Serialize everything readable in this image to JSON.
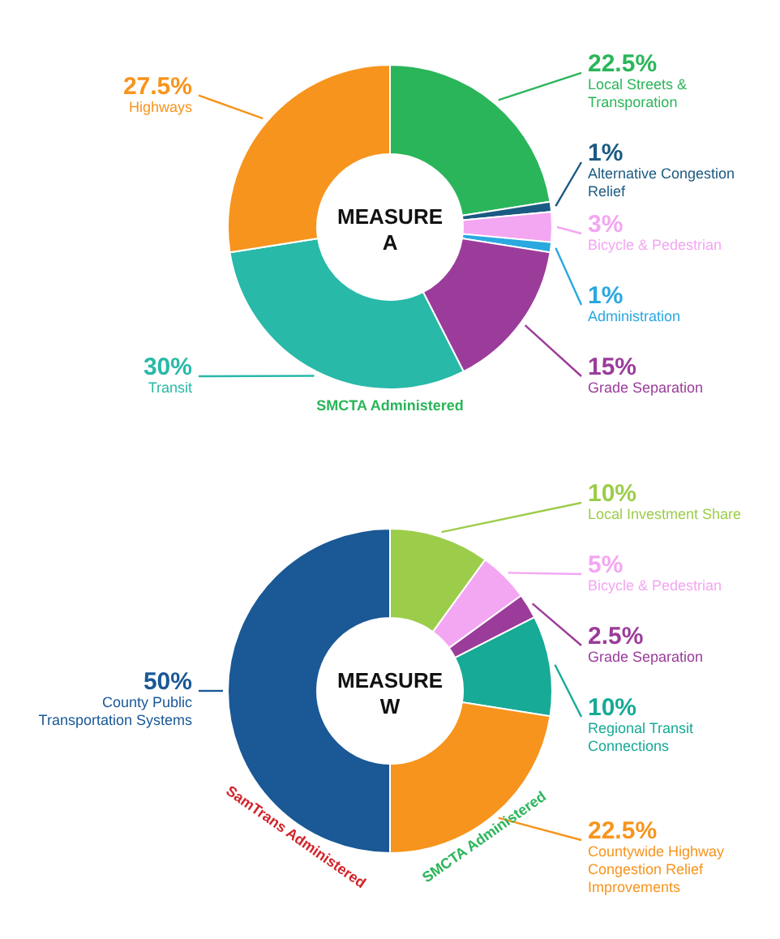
{
  "chart_data": [
    {
      "type": "donut",
      "title": "MEASURE A",
      "categories": [
        "Local Streets & Transporation",
        "Alternative Congestion Relief",
        "Bicycle & Pedestrian",
        "Administration",
        "Grade Separation",
        "Transit",
        "Highways"
      ],
      "values": [
        22.5,
        1,
        3,
        1,
        15,
        30,
        27.5
      ],
      "value_labels": [
        "22.5%",
        "1%",
        "3%",
        "1%",
        "15%",
        "30%",
        "27.5%"
      ],
      "colors": [
        "#2bb55a",
        "#1b5a82",
        "#f3a6f2",
        "#2aa8e0",
        "#9b3c9a",
        "#28b9a8",
        "#f7941d"
      ],
      "annotations": [
        "SMCTA Administered"
      ]
    },
    {
      "type": "donut",
      "title": "MEASURE W",
      "categories": [
        "Local Investment Share",
        "Bicycle & Pedestrian",
        "Grade Separation",
        "Regional Transit Connections",
        "Countywide Highway Congestion Relief Improvements",
        "County Public Transportation Systems"
      ],
      "values": [
        10,
        5,
        2.5,
        10,
        22.5,
        50
      ],
      "value_labels": [
        "10%",
        "5%",
        "2.5%",
        "10%",
        "22.5%",
        "50%"
      ],
      "colors": [
        "#9ccd4a",
        "#f3a6f2",
        "#9b3c9a",
        "#17aa96",
        "#f7941d",
        "#1a5896"
      ],
      "annotations": [
        "SamTrans Administered",
        "SMCTA Administered"
      ]
    }
  ]
}
